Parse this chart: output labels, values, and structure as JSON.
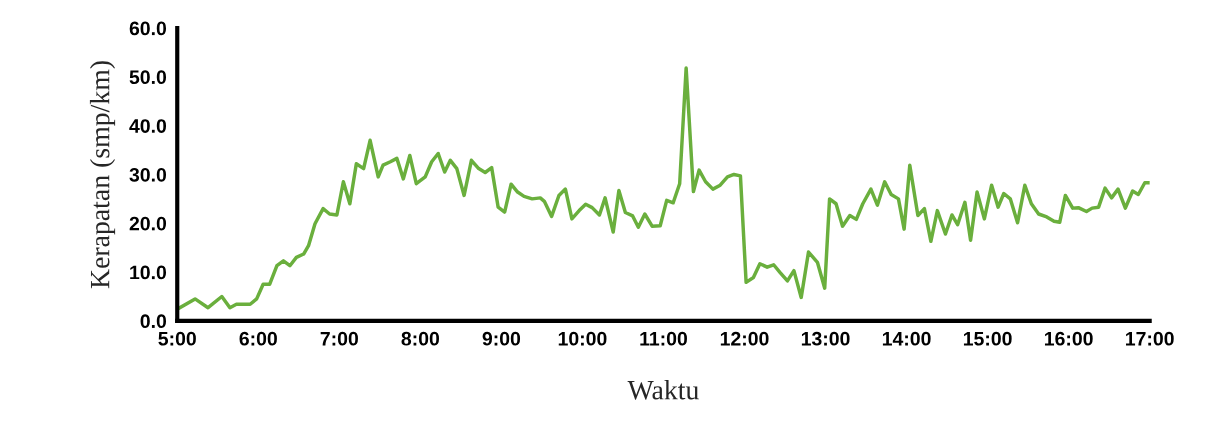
{
  "chart_data": {
    "type": "line",
    "xlabel": "Waktu",
    "ylabel": "Kerapatan (smp/km)",
    "xlim": [
      5,
      17
    ],
    "ylim": [
      0,
      60
    ],
    "xticks": [
      {
        "value": 5,
        "label": "5:00"
      },
      {
        "value": 6,
        "label": "6:00"
      },
      {
        "value": 7,
        "label": "7:00"
      },
      {
        "value": 8,
        "label": "8:00"
      },
      {
        "value": 9,
        "label": "9:00"
      },
      {
        "value": 10,
        "label": "10:00"
      },
      {
        "value": 11,
        "label": "11:00"
      },
      {
        "value": 12,
        "label": "12:00"
      },
      {
        "value": 13,
        "label": "13:00"
      },
      {
        "value": 14,
        "label": "14:00"
      },
      {
        "value": 15,
        "label": "15:00"
      },
      {
        "value": 16,
        "label": "16:00"
      },
      {
        "value": 17,
        "label": "17:00"
      }
    ],
    "yticks": [
      {
        "value": 0,
        "label": "0.0"
      },
      {
        "value": 10,
        "label": "10.0"
      },
      {
        "value": 20,
        "label": "20.0"
      },
      {
        "value": 30,
        "label": "30.0"
      },
      {
        "value": 40,
        "label": "40.0"
      },
      {
        "value": 50,
        "label": "50.0"
      },
      {
        "value": 60,
        "label": "60.0"
      }
    ],
    "series": [
      {
        "color": "#6aaf3d",
        "x": [
          5.0,
          5.22,
          5.38,
          5.55,
          5.65,
          5.73,
          5.9,
          5.98,
          6.06,
          6.14,
          6.23,
          6.31,
          6.39,
          6.47,
          6.56,
          6.62,
          6.7,
          6.8,
          6.88,
          6.97,
          7.05,
          7.13,
          7.21,
          7.3,
          7.38,
          7.48,
          7.54,
          7.63,
          7.71,
          7.79,
          7.87,
          7.95,
          8.06,
          8.14,
          8.22,
          8.3,
          8.37,
          8.45,
          8.54,
          8.63,
          8.72,
          8.8,
          8.88,
          8.96,
          9.04,
          9.12,
          9.2,
          9.28,
          9.38,
          9.48,
          9.53,
          9.62,
          9.71,
          9.79,
          9.87,
          9.96,
          10.04,
          10.12,
          10.21,
          10.28,
          10.38,
          10.45,
          10.53,
          10.62,
          10.69,
          10.77,
          10.86,
          10.96,
          11.04,
          11.12,
          11.2,
          11.28,
          11.37,
          11.44,
          11.52,
          11.61,
          11.7,
          11.79,
          11.87,
          11.95,
          12.02,
          12.11,
          12.19,
          12.28,
          12.36,
          12.44,
          12.53,
          12.61,
          12.7,
          12.79,
          12.9,
          12.99,
          13.05,
          13.13,
          13.21,
          13.3,
          13.38,
          13.46,
          13.56,
          13.64,
          13.73,
          13.81,
          13.9,
          13.97,
          14.04,
          14.14,
          14.22,
          14.3,
          14.38,
          14.48,
          14.56,
          14.63,
          14.72,
          14.79,
          14.87,
          14.96,
          15.05,
          15.13,
          15.2,
          15.28,
          15.37,
          15.46,
          15.54,
          15.63,
          15.73,
          15.82,
          15.89,
          15.96,
          16.05,
          16.12,
          16.22,
          16.29,
          16.37,
          16.45,
          16.53,
          16.61,
          16.7,
          16.79,
          16.86,
          16.94,
          17.0
        ],
        "values": [
          2.4,
          4.5,
          2.7,
          5.0,
          2.7,
          3.4,
          3.4,
          4.5,
          7.5,
          7.5,
          11.3,
          12.3,
          11.3,
          13.0,
          13.7,
          15.4,
          19.9,
          23.0,
          21.9,
          21.7,
          28.5,
          24.0,
          32.2,
          31.2,
          37.0,
          29.5,
          31.9,
          32.6,
          33.3,
          29.1,
          33.9,
          28.1,
          29.5,
          32.6,
          34.3,
          30.5,
          32.9,
          31.2,
          25.7,
          32.9,
          31.2,
          30.4,
          31.4,
          23.3,
          22.3,
          28.0,
          26.4,
          25.5,
          25.0,
          25.2,
          24.5,
          21.4,
          25.7,
          27.0,
          20.9,
          22.6,
          23.9,
          23.2,
          21.7,
          25.2,
          18.2,
          26.7,
          22.2,
          21.5,
          19.2,
          21.9,
          19.4,
          19.5,
          24.7,
          24.2,
          28.1,
          51.8,
          26.5,
          30.9,
          28.5,
          27.0,
          27.8,
          29.5,
          30.0,
          29.7,
          7.9,
          8.9,
          11.7,
          11.0,
          11.5,
          9.9,
          8.2,
          10.3,
          4.8,
          14.1,
          12.0,
          6.7,
          25.0,
          24.0,
          19.4,
          21.6,
          20.8,
          24.0,
          27.0,
          23.7,
          28.5,
          25.9,
          25.0,
          18.8,
          31.9,
          21.6,
          23.0,
          16.3,
          22.6,
          17.8,
          21.7,
          19.7,
          24.3,
          16.5,
          26.4,
          20.9,
          27.8,
          23.3,
          26.1,
          25.0,
          20.1,
          27.8,
          24.0,
          21.9,
          21.3,
          20.4,
          20.2,
          25.7,
          23.1,
          23.2,
          22.4,
          23.1,
          23.3,
          27.2,
          25.2,
          27.0,
          23.1,
          26.6,
          25.9,
          28.3,
          28.3
        ]
      }
    ]
  }
}
